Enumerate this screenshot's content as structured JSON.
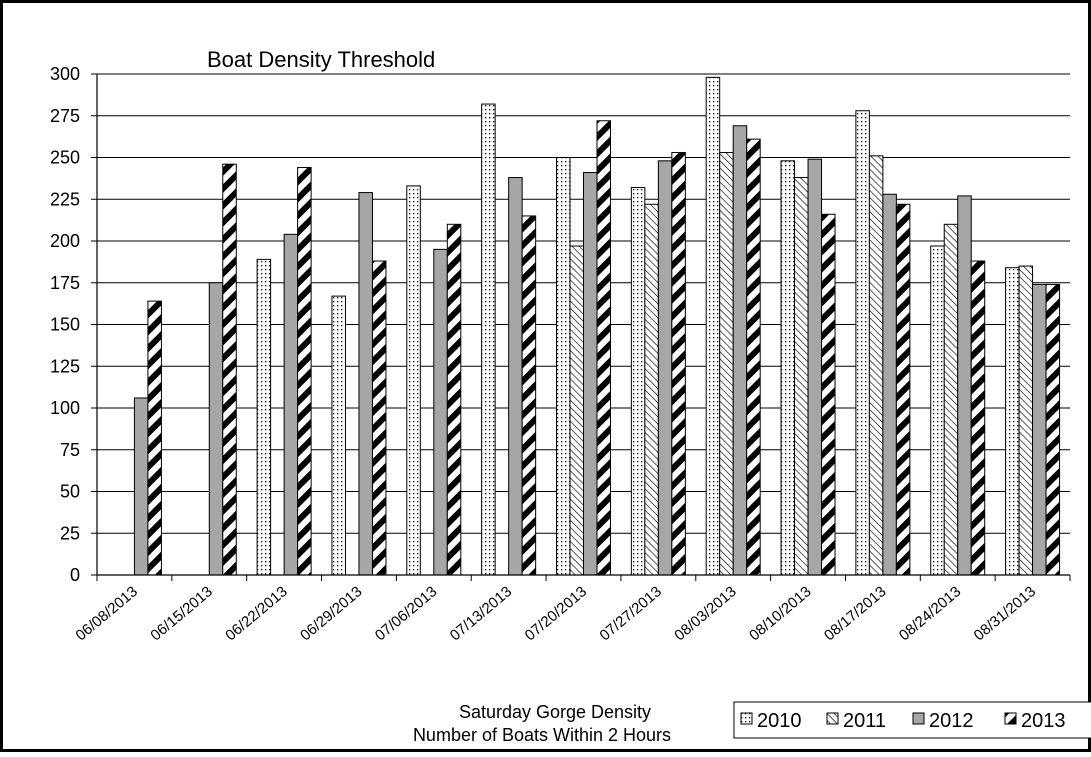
{
  "chart_data": {
    "type": "bar",
    "title": "Boat Density Threshold",
    "xlabel_lines": [
      "Saturday Gorge Density",
      "Number of Boats Within 2 Hours"
    ],
    "ylim": [
      0,
      300
    ],
    "yticks": [
      0,
      25,
      50,
      75,
      100,
      125,
      150,
      175,
      200,
      225,
      250,
      275,
      300
    ],
    "grid": true,
    "legend_position": "bottom-right",
    "categories": [
      "06/08/2013",
      "06/15/2013",
      "06/22/2013",
      "06/29/2013",
      "07/06/2013",
      "07/13/2013",
      "07/20/2013",
      "07/27/2013",
      "08/03/2013",
      "08/10/2013",
      "08/17/2013",
      "08/24/2013",
      "08/31/2013"
    ],
    "series": [
      {
        "name": "2010",
        "pattern": "dots",
        "values": [
          null,
          null,
          189,
          167,
          233,
          282,
          250,
          232,
          298,
          248,
          278,
          197,
          184
        ]
      },
      {
        "name": "2011",
        "pattern": "diagonal-hatch",
        "values": [
          null,
          null,
          null,
          null,
          null,
          null,
          197,
          222,
          253,
          238,
          251,
          210,
          185
        ]
      },
      {
        "name": "2012",
        "pattern": "solid-gray",
        "values": [
          106,
          175,
          204,
          229,
          195,
          238,
          241,
          248,
          269,
          249,
          228,
          227,
          174
        ]
      },
      {
        "name": "2013",
        "pattern": "bold-diagonal-stripes",
        "values": [
          164,
          246,
          244,
          188,
          210,
          215,
          272,
          253,
          261,
          216,
          222,
          188,
          174
        ]
      }
    ],
    "colors": {
      "fill_gray": "#a6a6a6",
      "stroke": "#000000",
      "background": "#ffffff"
    }
  }
}
